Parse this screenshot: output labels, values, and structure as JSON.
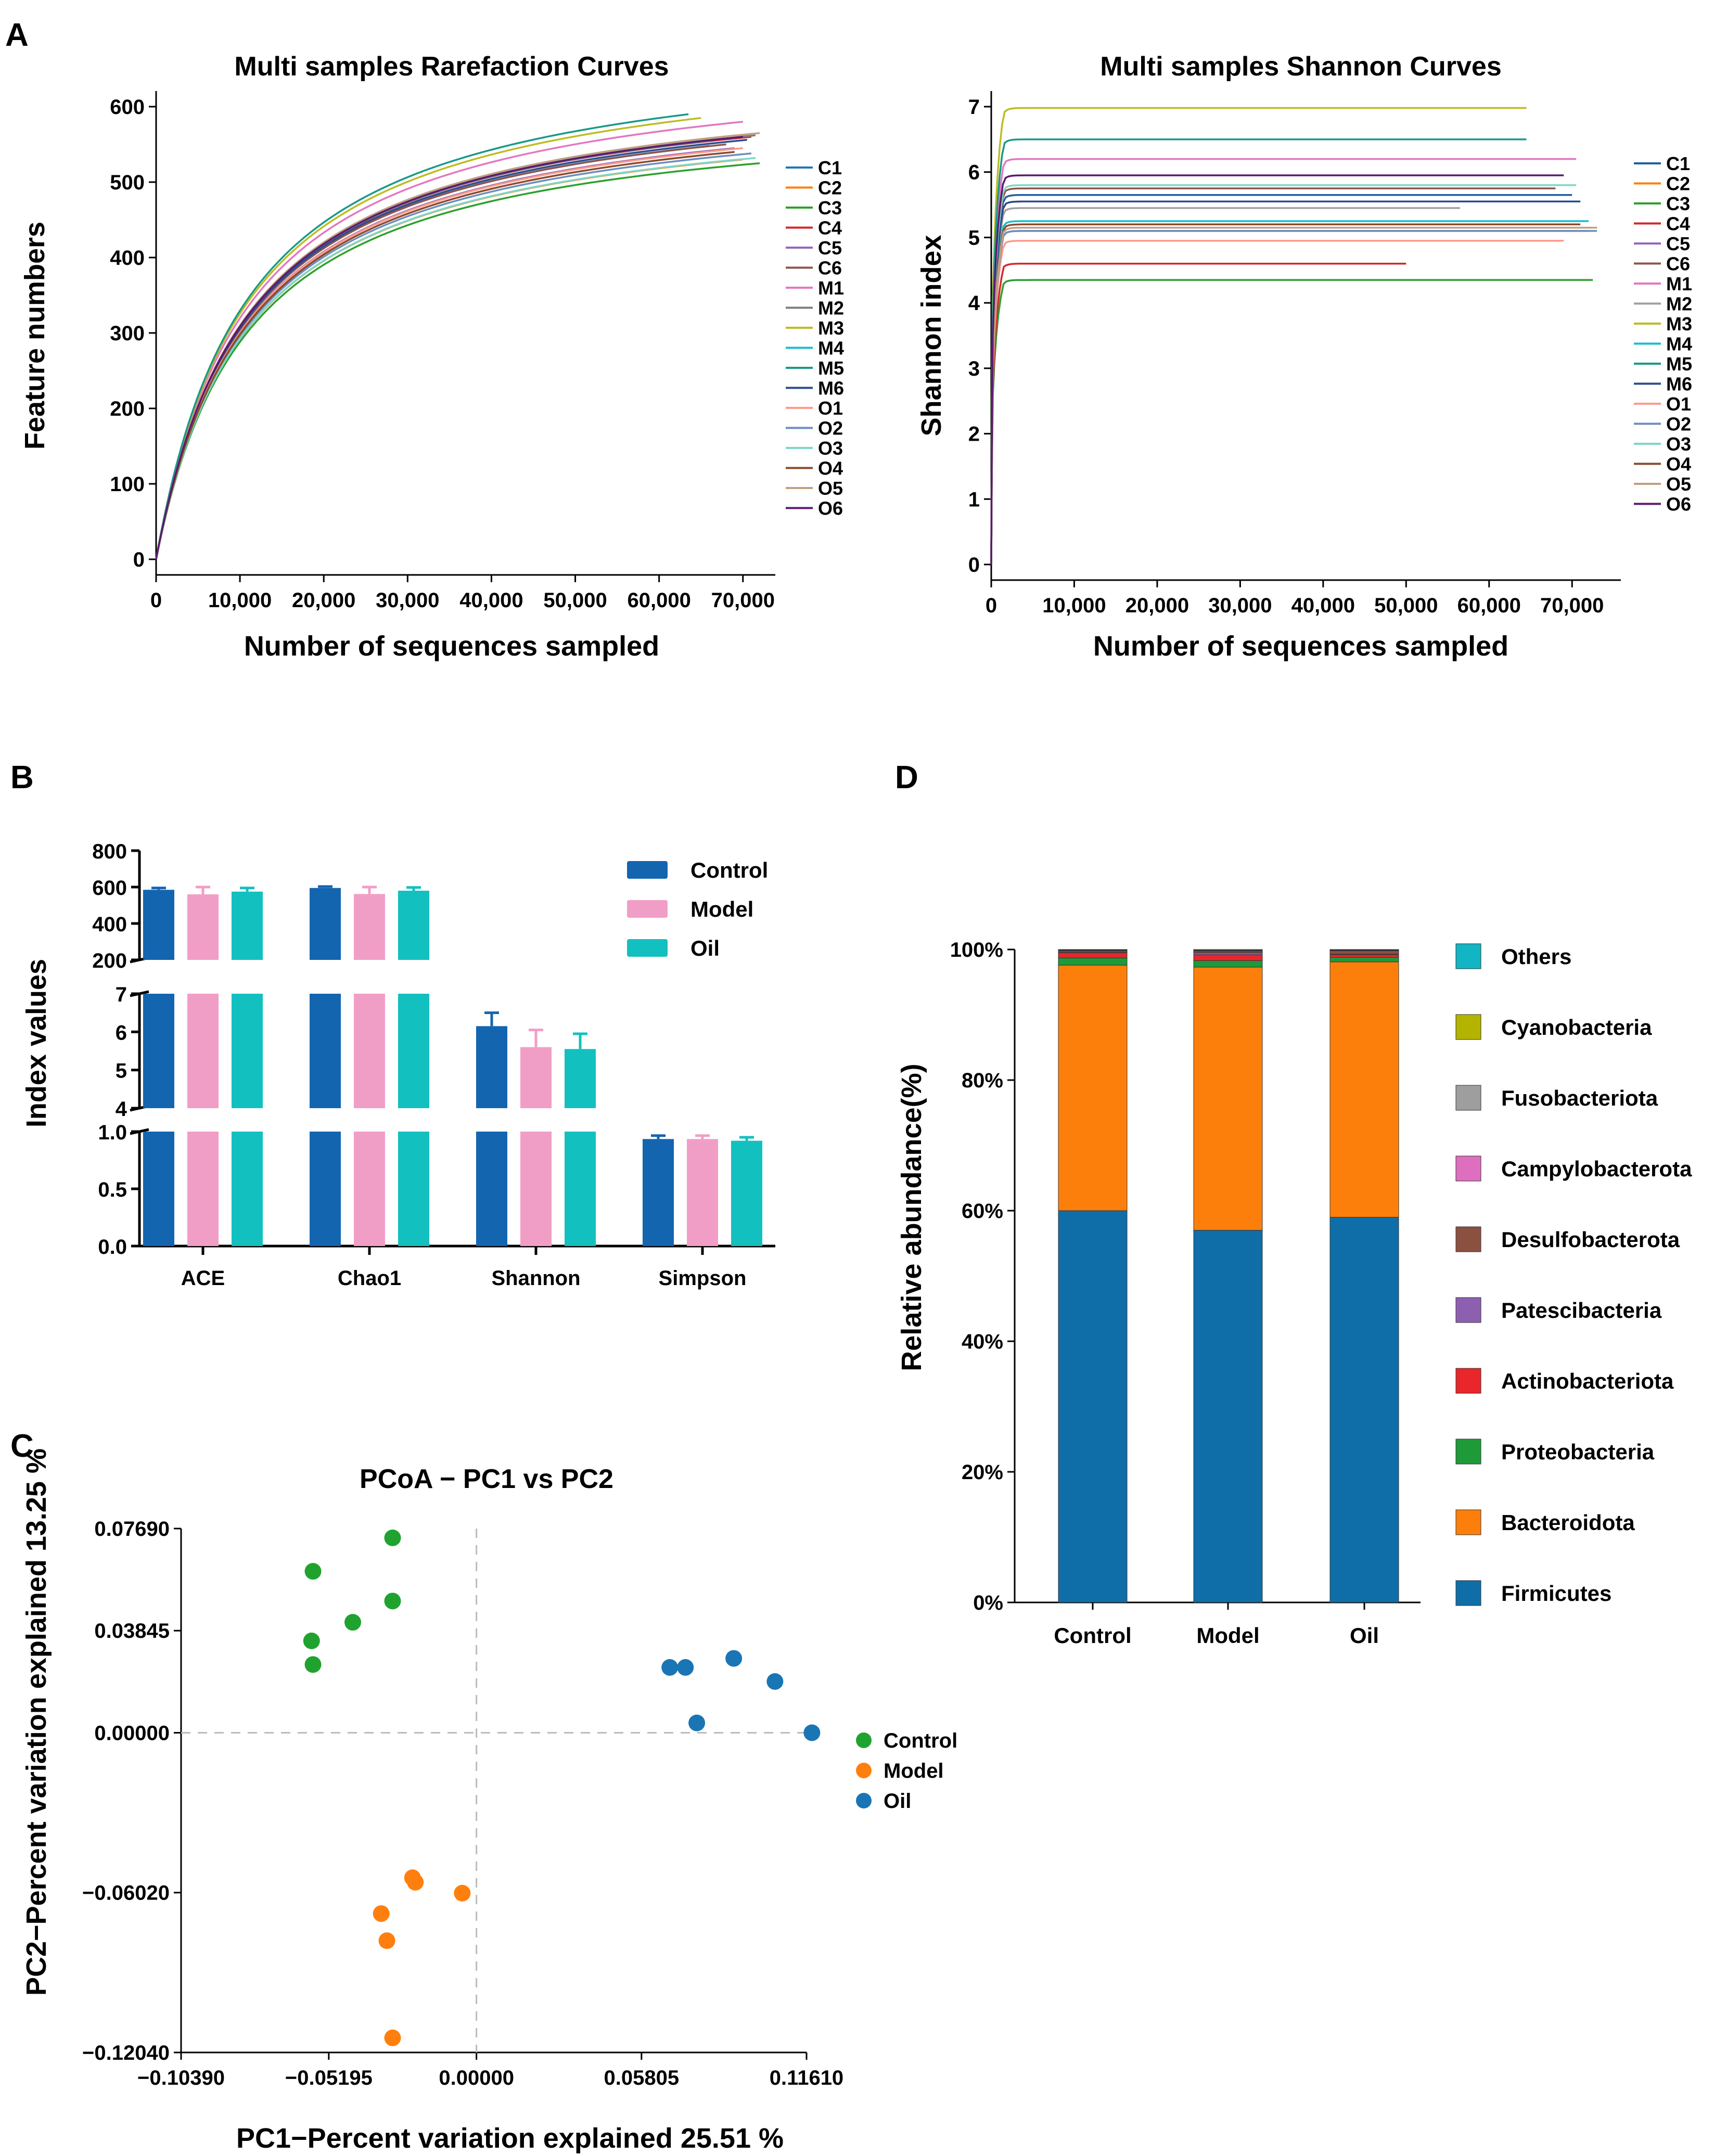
{
  "panels": [
    {
      "id": "A",
      "label": "A"
    },
    {
      "id": "B",
      "label": "B"
    },
    {
      "id": "C",
      "label": "C"
    },
    {
      "id": "D",
      "label": "D"
    }
  ],
  "chart_data": [
    {
      "id": "rarefaction",
      "panel": "A",
      "type": "line",
      "title": "Multi samples Rarefaction Curves",
      "xlabel": "Number of sequences sampled",
      "ylabel": "Feature numbers",
      "xlim": [
        0,
        72000
      ],
      "ylim": [
        0,
        600
      ],
      "xticks": [
        0,
        10000,
        20000,
        30000,
        40000,
        50000,
        60000,
        70000
      ],
      "xtick_labels": [
        "0",
        "10,000",
        "20,000",
        "30,000",
        "40,000",
        "50,000",
        "60,000",
        "70,000"
      ],
      "yticks": [
        0,
        100,
        200,
        300,
        400,
        500,
        600
      ],
      "ytick_labels": [
        "0",
        "100",
        "200",
        "300",
        "400",
        "500",
        "600"
      ],
      "legend": [
        "C1",
        "C2",
        "C3",
        "C4",
        "C5",
        "C6",
        "M1",
        "M2",
        "M3",
        "M4",
        "M5",
        "M6",
        "O1",
        "O2",
        "O3",
        "O4",
        "O5",
        "O6"
      ],
      "colors": [
        "#1f77b4",
        "#ff7f0e",
        "#2ca02c",
        "#d62728",
        "#9467bd",
        "#8c564b",
        "#e377c2",
        "#7f7f7f",
        "#bcbd22",
        "#17becf",
        "#1a9988",
        "#2a4d8f",
        "#ff9a8a",
        "#6c8ebf",
        "#7fd6c7",
        "#8b4a2b",
        "#c0a080",
        "#5b1a6e"
      ],
      "series": [
        {
          "name": "C1",
          "max_x": 66000,
          "final": 548
        },
        {
          "name": "C2",
          "max_x": 70000,
          "final": 530
        },
        {
          "name": "C3",
          "max_x": 72000,
          "final": 525
        },
        {
          "name": "C4",
          "max_x": 71000,
          "final": 560
        },
        {
          "name": "C5",
          "max_x": 69000,
          "final": 545
        },
        {
          "name": "C6",
          "max_x": 68000,
          "final": 550
        },
        {
          "name": "M1",
          "max_x": 70000,
          "final": 580
        },
        {
          "name": "M2",
          "max_x": 71500,
          "final": 562
        },
        {
          "name": "M3",
          "max_x": 65000,
          "final": 585
        },
        {
          "name": "M4",
          "max_x": 66000,
          "final": 555
        },
        {
          "name": "M5",
          "max_x": 63500,
          "final": 590
        },
        {
          "name": "M6",
          "max_x": 70500,
          "final": 556
        },
        {
          "name": "O1",
          "max_x": 70000,
          "final": 545
        },
        {
          "name": "O2",
          "max_x": 71000,
          "final": 538
        },
        {
          "name": "O3",
          "max_x": 71500,
          "final": 532
        },
        {
          "name": "O4",
          "max_x": 69000,
          "final": 540
        },
        {
          "name": "O5",
          "max_x": 72000,
          "final": 565
        },
        {
          "name": "O6",
          "max_x": 70000,
          "final": 560
        }
      ]
    },
    {
      "id": "shannon",
      "panel": "A",
      "type": "line",
      "title": "Multi samples Shannon Curves",
      "xlabel": "Number of sequences sampled",
      "ylabel": "Shannon index",
      "xlim": [
        0,
        74000
      ],
      "ylim": [
        0,
        7
      ],
      "xticks": [
        0,
        10000,
        20000,
        30000,
        40000,
        50000,
        60000,
        70000
      ],
      "xtick_labels": [
        "0",
        "10,000",
        "20,000",
        "30,000",
        "40,000",
        "50,000",
        "60,000",
        "70,000"
      ],
      "yticks": [
        0,
        1,
        2,
        3,
        4,
        5,
        6,
        7
      ],
      "ytick_labels": [
        "0",
        "1",
        "2",
        "3",
        "4",
        "5",
        "6",
        "7"
      ],
      "legend": [
        "C1",
        "C2",
        "C3",
        "C4",
        "C5",
        "C6",
        "M1",
        "M2",
        "M3",
        "M4",
        "M5",
        "M6",
        "O1",
        "O2",
        "O3",
        "O4",
        "O5",
        "O6"
      ],
      "colors": [
        "#1f5fa0",
        "#ff7f0e",
        "#2ca02c",
        "#d62728",
        "#9467bd",
        "#8c564b",
        "#e377c2",
        "#a0a0a0",
        "#bcbd22",
        "#17becf",
        "#1a9988",
        "#2a4d8f",
        "#ff9a8a",
        "#6c8ebf",
        "#7fd6c7",
        "#8b4a2b",
        "#c0a080",
        "#5b1a6e"
      ],
      "series": [
        {
          "name": "C1",
          "max_x": 70000,
          "final": 5.65
        },
        {
          "name": "C2",
          "max_x": 70000,
          "final": 5.55
        },
        {
          "name": "C3",
          "max_x": 72500,
          "final": 4.35
        },
        {
          "name": "C4",
          "max_x": 50000,
          "final": 4.6
        },
        {
          "name": "C5",
          "max_x": 72000,
          "final": 5.1
        },
        {
          "name": "C6",
          "max_x": 68000,
          "final": 5.75
        },
        {
          "name": "M1",
          "max_x": 70500,
          "final": 6.2
        },
        {
          "name": "M2",
          "max_x": 56500,
          "final": 5.45
        },
        {
          "name": "M3",
          "max_x": 64500,
          "final": 6.98
        },
        {
          "name": "M4",
          "max_x": 72000,
          "final": 5.25
        },
        {
          "name": "M5",
          "max_x": 64500,
          "final": 6.5
        },
        {
          "name": "M6",
          "max_x": 71000,
          "final": 5.55
        },
        {
          "name": "O1",
          "max_x": 69000,
          "final": 4.95
        },
        {
          "name": "O2",
          "max_x": 73000,
          "final": 5.1
        },
        {
          "name": "O3",
          "max_x": 70500,
          "final": 5.8
        },
        {
          "name": "O4",
          "max_x": 71000,
          "final": 5.2
        },
        {
          "name": "O5",
          "max_x": 73000,
          "final": 5.15
        },
        {
          "name": "O6",
          "max_x": 69000,
          "final": 5.95
        }
      ]
    },
    {
      "id": "alpha-index",
      "panel": "B",
      "type": "bar",
      "ylabel": "Index values",
      "categories": [
        "ACE",
        "Chao1",
        "Shannon",
        "Simpson"
      ],
      "series": [
        {
          "name": "Control",
          "color": "#1465b0",
          "values": [
            585,
            595,
            6.15,
            0.935
          ],
          "errors": [
            10,
            8,
            0.35,
            0.03
          ]
        },
        {
          "name": "Model",
          "color": "#f19ec6",
          "values": [
            560,
            562,
            5.6,
            0.935
          ],
          "errors": [
            40,
            38,
            0.45,
            0.03
          ]
        },
        {
          "name": "Oil",
          "color": "#13c0c0",
          "values": [
            575,
            580,
            5.55,
            0.92
          ],
          "errors": [
            20,
            18,
            0.4,
            0.03
          ]
        }
      ],
      "segments": [
        {
          "range": [
            200,
            800
          ],
          "ticks": [
            "200",
            "400",
            "600",
            "800"
          ]
        },
        {
          "range": [
            4,
            7
          ],
          "ticks": [
            "4",
            "5",
            "6",
            "7"
          ]
        },
        {
          "range": [
            0,
            1
          ],
          "ticks": [
            "0.0",
            "0.5",
            "1.0"
          ]
        }
      ]
    },
    {
      "id": "pcoa",
      "panel": "C",
      "type": "scatter",
      "title": "PCoA − PC1 vs PC2",
      "xlabel": "PC1−Percent variation explained 25.51 %",
      "ylabel": "PC2−Percent variation explained 13.25 %",
      "xlim": [
        -0.1039,
        0.1161
      ],
      "ylim": [
        -0.1204,
        0.0769
      ],
      "xtick_labels": [
        "−0.10390",
        "−0.05195",
        "0.00000",
        "0.05805",
        "0.11610"
      ],
      "xtick_values": [
        -0.1039,
        -0.05195,
        0.0,
        0.05805,
        0.1161
      ],
      "ytick_labels": [
        "0.07690",
        "0.03845",
        "0.00000",
        "−0.06020",
        "−0.12040"
      ],
      "ytick_values": [
        0.0769,
        0.03845,
        0.0,
        -0.0602,
        -0.1204
      ],
      "series": [
        {
          "name": "Control",
          "color": "#1fa32e",
          "points": [
            [
              -0.0295,
              0.0734
            ],
            [
              -0.0295,
              0.0496
            ],
            [
              -0.0435,
              0.0416
            ],
            [
              -0.0575,
              0.0608
            ],
            [
              -0.058,
              0.0346
            ],
            [
              -0.0575,
              0.0257
            ]
          ]
        },
        {
          "name": "Model",
          "color": "#ff7f0e",
          "points": [
            [
              -0.0225,
              -0.0546
            ],
            [
              -0.0215,
              -0.0563
            ],
            [
              -0.005,
              -0.0604
            ],
            [
              -0.0335,
              -0.0681
            ],
            [
              -0.0315,
              -0.0783
            ],
            [
              -0.0295,
              -0.1149
            ]
          ]
        },
        {
          "name": "Oil",
          "color": "#1a75b5",
          "points": [
            [
              0.068,
              0.0246
            ],
            [
              0.0735,
              0.0246
            ],
            [
              0.0775,
              0.0037
            ],
            [
              0.0905,
              0.028
            ],
            [
              0.105,
              0.0193
            ],
            [
              0.118,
              0.0
            ]
          ]
        }
      ]
    },
    {
      "id": "phylum-abundance",
      "panel": "D",
      "type": "bar",
      "stacked": true,
      "ylabel": "Relative abundance(%)",
      "categories": [
        "Control",
        "Model",
        "Oil"
      ],
      "yticks": [
        0,
        20,
        40,
        60,
        80,
        100
      ],
      "ytick_labels": [
        "0%",
        "20%",
        "40%",
        "60%",
        "80%",
        "100%"
      ],
      "series": [
        {
          "name": "Firmicutes",
          "color": "#0f6ea8",
          "values": [
            60.0,
            57.0,
            59.0
          ]
        },
        {
          "name": "Bacteroidota",
          "color": "#fc7f0c",
          "values": [
            37.6,
            40.3,
            39.1
          ]
        },
        {
          "name": "Proteobacteria",
          "color": "#1e9a38",
          "values": [
            1.1,
            1.0,
            0.7
          ]
        },
        {
          "name": "Actinobacteriota",
          "color": "#e9262a",
          "values": [
            0.8,
            0.9,
            0.4
          ]
        },
        {
          "name": "Patescibacteria",
          "color": "#8d5fb0",
          "values": [
            0.1,
            0.3,
            0.1
          ]
        },
        {
          "name": "Desulfobacterota",
          "color": "#8b5040",
          "values": [
            0.2,
            0.2,
            0.5
          ]
        },
        {
          "name": "Campylobacterota",
          "color": "#de6fbf",
          "values": [
            0.05,
            0.1,
            0.05
          ]
        },
        {
          "name": "Fusobacteriota",
          "color": "#9e9e9e",
          "values": [
            0.05,
            0.05,
            0.05
          ]
        },
        {
          "name": "Cyanobacteria",
          "color": "#b4b400",
          "values": [
            0.05,
            0.05,
            0.05
          ]
        },
        {
          "name": "Others",
          "color": "#12b5c3",
          "values": [
            0.05,
            0.1,
            0.05
          ]
        }
      ],
      "legend_order": [
        "Others",
        "Cyanobacteria",
        "Fusobacteriota",
        "Campylobacterota",
        "Desulfobacterota",
        "Patescibacteria",
        "Actinobacteriota",
        "Proteobacteria",
        "Bacteroidota",
        "Firmicutes"
      ]
    }
  ]
}
